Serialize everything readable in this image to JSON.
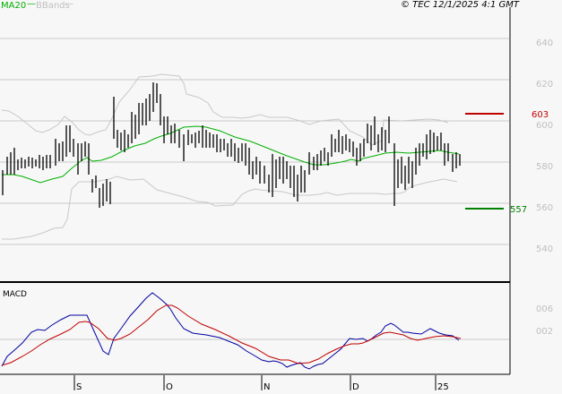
{
  "header": {
    "legend_ma": "MA20",
    "legend_bbands": "BBands",
    "copyright": "© TEC 12/1/2025 4:1 GMT"
  },
  "levels": {
    "resistance": "603",
    "support": "557",
    "resistance_color": "#c00000",
    "support_color": "#008000"
  },
  "macd_panel": {
    "title": "MACD",
    "yticks": [
      "006",
      "002"
    ]
  },
  "colors": {
    "ma20": "#00b000",
    "bbands": "#c0c0c0",
    "macd": "#0000a0",
    "signal": "#c00000",
    "grid": "#c8c8c8"
  },
  "chart_data": [
    {
      "type": "line",
      "title": "Price (OHLC bars) with MA20 and Bollinger Bands",
      "xlabel": "",
      "ylabel": "",
      "ylim": [
        530,
        650
      ],
      "yticks": [
        540,
        560,
        580,
        600,
        620,
        640
      ],
      "xticks": [
        "S",
        "O",
        "N",
        "D",
        "25"
      ],
      "grid": true,
      "legend": [
        "MA20",
        "BBands"
      ],
      "annotations": [
        {
          "label": "603",
          "value": 603,
          "color": "#c00000"
        },
        {
          "label": "557",
          "value": 557,
          "color": "#008000"
        }
      ],
      "series": [
        {
          "name": "MA20",
          "approx_values": [
            579,
            579,
            577,
            575,
            578,
            581,
            586,
            591,
            594,
            597,
            596,
            593,
            589,
            585,
            580,
            577,
            575,
            576,
            578,
            582,
            585,
            585,
            584,
            584
          ]
        },
        {
          "name": "BB upper",
          "approx_values": [
            601,
            597,
            590,
            593,
            591,
            603,
            616,
            622,
            612,
            607,
            606,
            603,
            598,
            590,
            586,
            587,
            595,
            598,
            599,
            599,
            600,
            601,
            600,
            598
          ]
        },
        {
          "name": "BB lower",
          "approx_values": [
            543,
            545,
            548,
            558,
            566,
            567,
            566,
            565,
            573,
            572,
            571,
            566,
            564,
            566,
            567,
            569,
            571,
            574,
            575,
            572,
            573,
            574,
            573,
            572
          ]
        },
        {
          "name": "Close",
          "approx_values": [
            572,
            580,
            583,
            585,
            576,
            566,
            598,
            595,
            610,
            600,
            590,
            587,
            582,
            578,
            572,
            568,
            573,
            585,
            593,
            598,
            574,
            590,
            594,
            581
          ]
        }
      ]
    },
    {
      "type": "line",
      "title": "MACD",
      "yticks": [
        "006",
        "002"
      ],
      "xticks": [
        "S",
        "O",
        "N",
        "D",
        "25"
      ],
      "series": [
        {
          "name": "MACD",
          "approx_values": [
            -0.004,
            0.0,
            0.003,
            0.005,
            0.0025,
            -0.002,
            0.005,
            0.009,
            0.005,
            0.001,
            0.0,
            -0.002,
            -0.005,
            -0.004,
            0.0,
            0.002,
            0.003,
            -0.001,
            0.001,
            -0.0005
          ]
        },
        {
          "name": "Signal",
          "approx_values": [
            -0.004,
            -0.002,
            0.001,
            0.003,
            0.003,
            0.0,
            0.002,
            0.006,
            0.006,
            0.003,
            0.001,
            -0.002,
            -0.004,
            -0.004,
            -0.002,
            0.0,
            0.002,
            0.0005,
            0.0005,
            0.0005
          ]
        }
      ]
    }
  ]
}
